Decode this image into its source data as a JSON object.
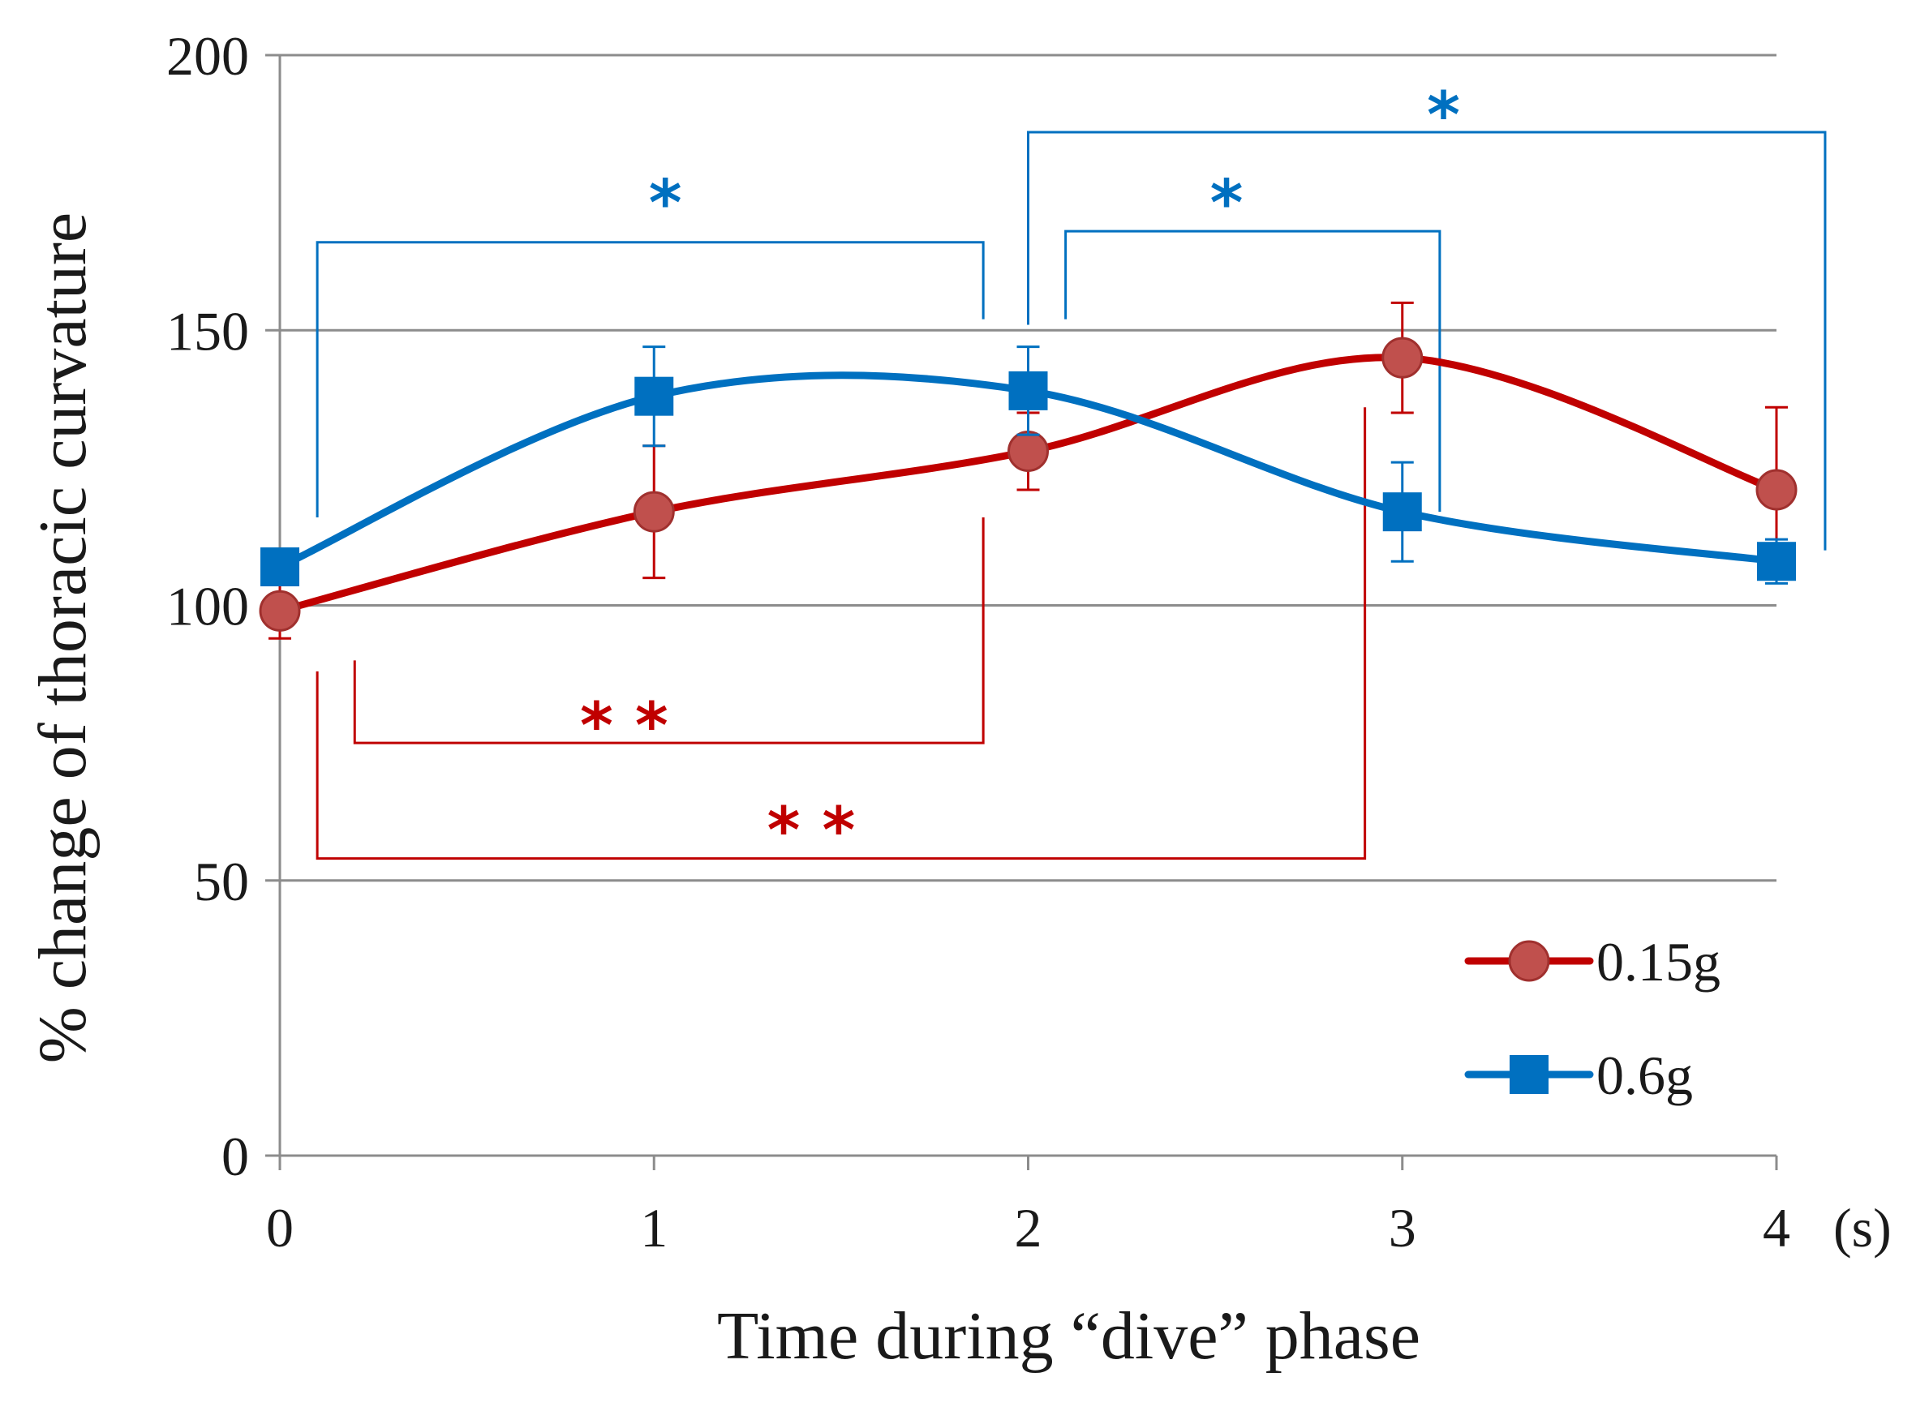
{
  "chart_data": {
    "type": "line",
    "title": "",
    "xlabel": "Time during “dive” phase",
    "ylabel": "% change of thoracic curvature",
    "x_unit_label": "(s)",
    "x": [
      0,
      1,
      2,
      3,
      4
    ],
    "xlim": [
      0,
      4
    ],
    "ylim": [
      0,
      200
    ],
    "yticks": [
      0,
      50,
      100,
      150,
      200
    ],
    "grid": true,
    "legend_position": "bottom-right",
    "smooth_lines": true,
    "series": [
      {
        "name": "0.15g",
        "marker": "circle",
        "color": "#c00000",
        "marker_color": "#c0504d",
        "values": [
          99,
          117,
          128,
          145,
          121
        ],
        "error": [
          5,
          12,
          7,
          10,
          15
        ]
      },
      {
        "name": "0.6g",
        "marker": "square",
        "color": "#0070c0",
        "marker_color": "#0070c0",
        "values": [
          107,
          138,
          139,
          117,
          108
        ],
        "error": [
          3,
          9,
          8,
          9,
          4
        ]
      }
    ],
    "annotations": [
      {
        "label": "*",
        "color": "#0070c0",
        "from_x": 0.1,
        "to_x": 1.88,
        "bracket_y": 166,
        "drop_start_y": 116,
        "drop_end_y": 152,
        "side": "above",
        "star_x": 1.03,
        "star_y": 175
      },
      {
        "label": "*",
        "color": "#0070c0",
        "from_x": 2.1,
        "to_x": 3.1,
        "bracket_y": 168,
        "drop_start_y": 152,
        "drop_end_y": 117,
        "side": "above",
        "star_x": 2.53,
        "star_y": 175
      },
      {
        "label": "*",
        "color": "#0070c0",
        "from_x": 2.0,
        "to_x": 4.13,
        "bracket_y": 186,
        "drop_start_y": 151,
        "drop_end_y": 110,
        "side": "above",
        "star_x": 3.11,
        "star_y": 191
      },
      {
        "label": "* *",
        "color": "#c00000",
        "from_x": 0.2,
        "to_x": 1.88,
        "bracket_y": 75,
        "drop_start_y": 90,
        "drop_end_y": 116,
        "side": "below",
        "star_x": 0.92,
        "star_y": 80
      },
      {
        "label": "* *",
        "color": "#c00000",
        "from_x": 0.1,
        "to_x": 2.9,
        "bracket_y": 54,
        "drop_start_y": 88,
        "drop_end_y": 136,
        "side": "below",
        "star_x": 1.42,
        "star_y": 61
      }
    ]
  }
}
